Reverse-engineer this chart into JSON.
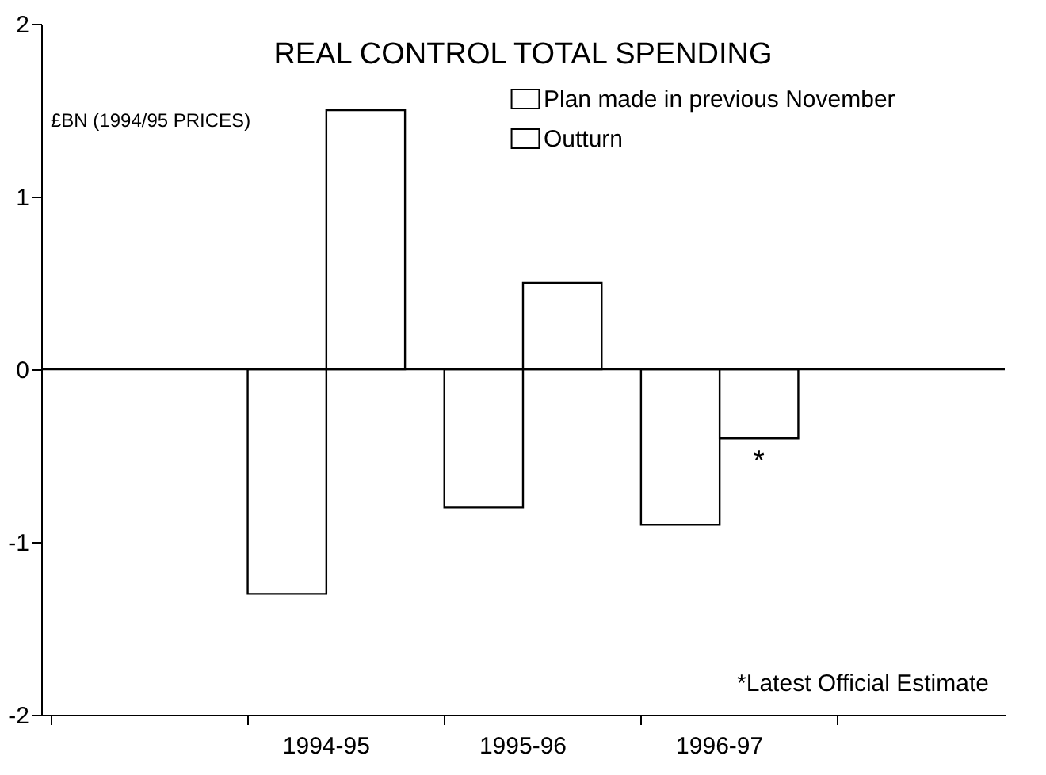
{
  "chart_data": {
    "type": "bar",
    "title": "REAL CONTROL TOTAL SPENDING",
    "ylabel": "£BN (1994/95 PRICES)",
    "categories": [
      null,
      "1994-95",
      "1995-96",
      "1996-97",
      null
    ],
    "series": [
      {
        "name": "Plan made in previous November",
        "color": "#ffffff",
        "values": [
          null,
          -1.3,
          -0.8,
          -0.9,
          null
        ]
      },
      {
        "name": "Outturn",
        "color": "#ffffff",
        "values": [
          null,
          1.5,
          0.5,
          -0.4,
          null
        ]
      }
    ],
    "ylim": [
      -2,
      2
    ],
    "yticks": [
      -2,
      -1,
      0,
      1,
      2
    ],
    "legend": "top right",
    "ref_lines": [
      {
        "axis": "y",
        "value": 0
      }
    ],
    "annotations": [
      {
        "text": "*",
        "x": "1996-97",
        "y": -0.4
      },
      "*Latest Official Estimate"
    ]
  }
}
